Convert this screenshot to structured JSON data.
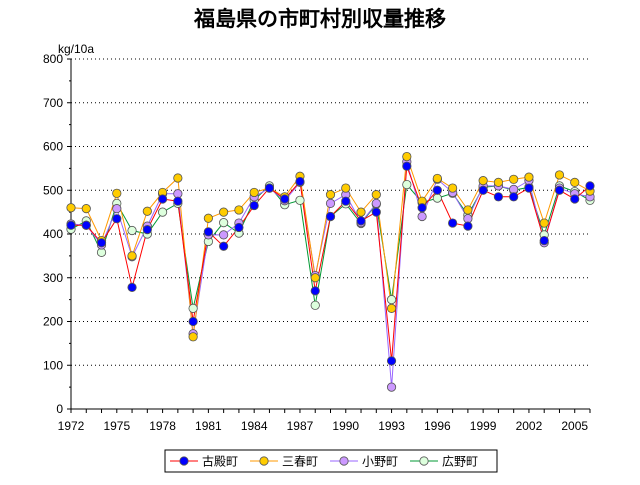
{
  "chart_data": {
    "type": "line",
    "title": "福島県の市町村別収量推移",
    "ylabel": "kg/10a",
    "xlabel": "",
    "ylim": [
      0,
      800
    ],
    "yticks": [
      "0",
      "100",
      "200",
      "300",
      "400",
      "500",
      "600",
      "700",
      "800"
    ],
    "xlim": [
      1972,
      2006
    ],
    "xticks": [
      "1972",
      "1975",
      "1978",
      "1981",
      "1984",
      "1987",
      "1990",
      "1993",
      "1996",
      "1999",
      "2002",
      "2005"
    ],
    "grid": "horizontal-dotted",
    "legend": "bottom",
    "x": [
      1972,
      1973,
      1974,
      1975,
      1976,
      1977,
      1978,
      1979,
      1980,
      1981,
      1982,
      1983,
      1984,
      1985,
      1986,
      1987,
      1988,
      1989,
      1990,
      1991,
      1992,
      1993,
      1994,
      1995,
      1996,
      1997,
      1998,
      1999,
      2000,
      2001,
      2002,
      2003,
      2004,
      2005,
      2006
    ],
    "series": [
      {
        "name": "古殿町",
        "line": "#ff0000",
        "fill": "#0000ff",
        "values": [
          420,
          420,
          380,
          435,
          278,
          410,
          480,
          475,
          200,
          405,
          372,
          415,
          465,
          505,
          480,
          520,
          270,
          440,
          475,
          430,
          450,
          110,
          555,
          460,
          500,
          425,
          418,
          500,
          485,
          485,
          505,
          385,
          500,
          480,
          510
        ]
      },
      {
        "name": "三春町",
        "line": "#ff9900",
        "fill": "#ffcc00",
        "values": [
          460,
          458,
          385,
          493,
          350,
          452,
          495,
          528,
          165,
          436,
          450,
          455,
          495,
          505,
          485,
          532,
          300,
          490,
          505,
          450,
          490,
          230,
          577,
          475,
          527,
          505,
          455,
          522,
          518,
          525,
          530,
          425,
          535,
          518,
          498
        ]
      },
      {
        "name": "小野町",
        "line": "#9966ff",
        "fill": "#cc99ff",
        "values": [
          423,
          420,
          375,
          458,
          348,
          418,
          492,
          492,
          172,
          398,
          398,
          425,
          485,
          505,
          476,
          518,
          305,
          470,
          490,
          426,
          470,
          50,
          565,
          440,
          525,
          495,
          435,
          510,
          510,
          502,
          522,
          380,
          505,
          492,
          485
        ]
      },
      {
        "name": "広野町",
        "line": "#009933",
        "fill": "#ddffdd",
        "values": [
          411,
          430,
          358,
          470,
          408,
          400,
          450,
          470,
          230,
          383,
          426,
          402,
          478,
          510,
          467,
          477,
          237,
          440,
          469,
          424,
          468,
          250,
          513,
          472,
          482,
          493,
          443,
          507,
          510,
          500,
          507,
          398,
          510,
          497,
          477
        ]
      }
    ]
  }
}
